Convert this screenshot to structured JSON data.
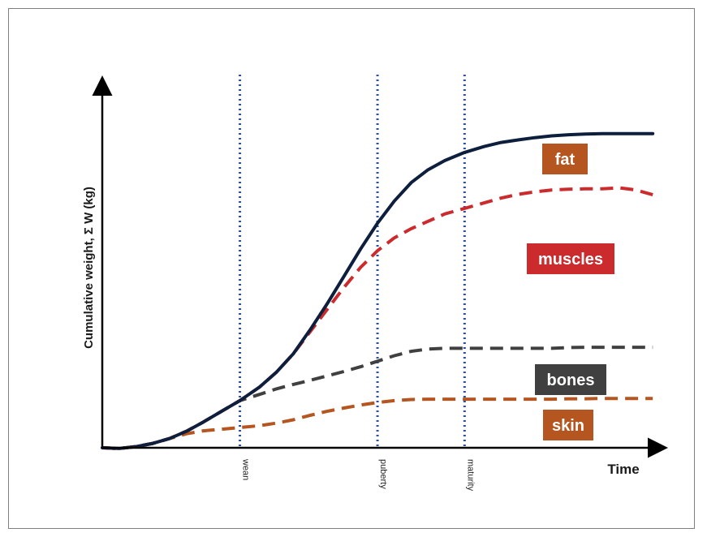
{
  "chart_data": {
    "type": "line",
    "xlabel": "Time",
    "ylabel": "Cumulative weight, Σ W (kg)",
    "xlim": [
      0,
      100
    ],
    "ylim": [
      0,
      100
    ],
    "grid": false,
    "x_markers": [
      {
        "label": "wean",
        "x": 24.5
      },
      {
        "label": "puberty",
        "x": 49
      },
      {
        "label": "maturity",
        "x": 64.5
      }
    ],
    "series": [
      {
        "name": "fat",
        "color": "#0d1f3c",
        "dash": "solid",
        "x": [
          0,
          3,
          6,
          9,
          12,
          15,
          18,
          21,
          24.5,
          28,
          31,
          34,
          37,
          40,
          43,
          46,
          49,
          52,
          55,
          58,
          61,
          64.5,
          68,
          71,
          74,
          77,
          80,
          83,
          86,
          89,
          92,
          95,
          98
        ],
        "values": [
          0,
          -0.2,
          0.3,
          1.2,
          2.5,
          4.5,
          7,
          9.7,
          12.8,
          16.5,
          20.5,
          25.5,
          32,
          39,
          46.5,
          54,
          61,
          67,
          72,
          75.5,
          78,
          80.2,
          81.8,
          82.9,
          83.6,
          84.2,
          84.7,
          85,
          85.2,
          85.3,
          85.3,
          85.3,
          85.3
        ]
      },
      {
        "name": "muscles",
        "color": "#cc2b2e",
        "dash": "dashed",
        "x": [
          0,
          3,
          6,
          9,
          12,
          15,
          18,
          21,
          24.5,
          28,
          31,
          34,
          37,
          40,
          43,
          46,
          49,
          52,
          55,
          58,
          61,
          64.5,
          68,
          71,
          74,
          77,
          80,
          83,
          86,
          89,
          92,
          95,
          98
        ],
        "values": [
          0,
          -0.2,
          0.3,
          1.2,
          2.5,
          4.5,
          7,
          9.7,
          12.8,
          16.5,
          20.5,
          25.5,
          31.5,
          37.5,
          43.5,
          49,
          53.5,
          57,
          59.5,
          61.5,
          63.5,
          65,
          66.5,
          67.8,
          68.8,
          69.5,
          70,
          70.2,
          70.3,
          70.3,
          70.6,
          70,
          68.7
        ]
      },
      {
        "name": "bones",
        "color": "#404040",
        "dash": "dashed",
        "x": [
          0,
          3,
          6,
          9,
          12,
          15,
          18,
          21,
          24.5,
          28,
          31,
          34,
          37,
          40,
          43,
          46,
          49,
          52,
          55,
          58,
          61,
          64.5,
          68,
          71,
          74,
          77,
          80,
          83,
          86,
          89,
          92,
          95,
          98
        ],
        "values": [
          0,
          -0.2,
          0.3,
          1.2,
          2.5,
          4.5,
          7,
          9.7,
          12.8,
          14.5,
          16,
          17.2,
          18.3,
          19.5,
          20.7,
          22,
          23.5,
          25,
          26.2,
          26.8,
          27,
          27,
          27,
          27,
          27,
          27,
          27,
          27.2,
          27.3,
          27.3,
          27.3,
          27.3,
          27.3
        ]
      },
      {
        "name": "skin",
        "color": "#b5551f",
        "dash": "dashed",
        "x": [
          0,
          3,
          6,
          9,
          12,
          15,
          18,
          21,
          24.5,
          28,
          31,
          34,
          37,
          40,
          43,
          46,
          49,
          52,
          55,
          58,
          61,
          64.5,
          68,
          71,
          74,
          77,
          80,
          83,
          86,
          89,
          92,
          95,
          98
        ],
        "values": [
          0,
          -0.2,
          0.3,
          1.2,
          2.5,
          3.8,
          4.6,
          5,
          5.5,
          6,
          6.7,
          7.6,
          8.8,
          9.9,
          10.8,
          11.6,
          12.3,
          12.8,
          13.1,
          13.2,
          13.2,
          13.2,
          13.2,
          13.2,
          13.2,
          13.2,
          13.2,
          13.3,
          13.3,
          13.4,
          13.4,
          13.4,
          13.4
        ]
      }
    ],
    "labels": [
      {
        "text": "fat",
        "color": "#b5551f",
        "near_series": "fat"
      },
      {
        "text": "muscles",
        "color": "#cc2b2e",
        "near_series": "muscles"
      },
      {
        "text": "bones",
        "color": "#404040",
        "near_series": "bones"
      },
      {
        "text": "skin",
        "color": "#b5551f",
        "near_series": "skin"
      }
    ],
    "vline_color": "#2a4f9c"
  }
}
